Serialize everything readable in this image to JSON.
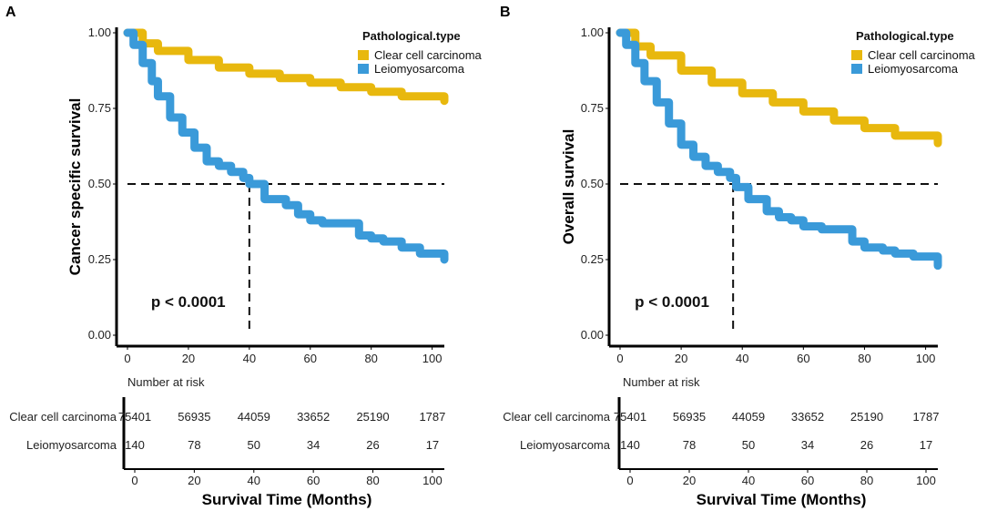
{
  "chart_data": [
    {
      "type": "line",
      "panel_label": "A",
      "ylabel": "Cancer specific survival",
      "xlabel": "Survival Time (Months)",
      "xlim": [
        -5,
        105
      ],
      "ylim": [
        -0.03,
        1.03
      ],
      "x_ticks": [
        0,
        20,
        40,
        60,
        80,
        100
      ],
      "x_tick_labels": [
        "0",
        "20",
        "40",
        "60",
        "80",
        "100"
      ],
      "y_ticks": [
        0.0,
        0.25,
        0.5,
        0.75,
        1.0
      ],
      "y_tick_labels": [
        "0.00",
        "0.25",
        "0.50",
        "0.75",
        "1.00"
      ],
      "legend_title": "Pathological.type",
      "legend_position": "top-right",
      "p_value": "p < 0.0001",
      "median_line": {
        "y": 0.5,
        "x": 40
      },
      "series": [
        {
          "name": "Clear cell carcinoma",
          "color": "#E8B80E",
          "x": [
            0,
            5,
            10,
            20,
            30,
            40,
            50,
            60,
            70,
            80,
            90,
            104
          ],
          "y": [
            1.0,
            0.965,
            0.94,
            0.91,
            0.885,
            0.865,
            0.85,
            0.835,
            0.82,
            0.805,
            0.79,
            0.775
          ]
        },
        {
          "name": "Leiomyosarcoma",
          "color": "#3A9AD9",
          "x": [
            0,
            2,
            5,
            8,
            10,
            14,
            18,
            22,
            26,
            30,
            34,
            38,
            40,
            45,
            52,
            56,
            60,
            64,
            70,
            74,
            76,
            80,
            84,
            90,
            96,
            100,
            104
          ],
          "y": [
            1.0,
            0.96,
            0.9,
            0.84,
            0.79,
            0.72,
            0.67,
            0.62,
            0.575,
            0.56,
            0.54,
            0.52,
            0.5,
            0.45,
            0.43,
            0.4,
            0.38,
            0.37,
            0.37,
            0.37,
            0.33,
            0.32,
            0.31,
            0.29,
            0.27,
            0.27,
            0.25
          ]
        }
      ],
      "risk_table": {
        "title": "Number at risk",
        "times": [
          "0",
          "20",
          "40",
          "60",
          "80",
          "100"
        ],
        "rows": [
          {
            "group": "Clear cell carcinoma",
            "values": [
              "75401",
              "56935",
              "44059",
              "33652",
              "25190",
              "1787"
            ]
          },
          {
            "group": "Leiomyosarcoma",
            "values": [
              "140",
              "78",
              "50",
              "34",
              "26",
              "17"
            ]
          }
        ]
      }
    },
    {
      "type": "line",
      "panel_label": "B",
      "ylabel": "Overall survival",
      "xlabel": "Survival Time (Months)",
      "xlim": [
        -5,
        105
      ],
      "ylim": [
        -0.03,
        1.03
      ],
      "x_ticks": [
        0,
        20,
        40,
        60,
        80,
        100
      ],
      "x_tick_labels": [
        "0",
        "20",
        "40",
        "60",
        "80",
        "100"
      ],
      "y_ticks": [
        0.0,
        0.25,
        0.5,
        0.75,
        1.0
      ],
      "y_tick_labels": [
        "0.00",
        "0.25",
        "0.50",
        "0.75",
        "1.00"
      ],
      "legend_title": "Pathological.type",
      "legend_position": "top-right",
      "p_value": "p < 0.0001",
      "median_line": {
        "y": 0.5,
        "x": 37
      },
      "series": [
        {
          "name": "Clear cell carcinoma",
          "color": "#E8B80E",
          "x": [
            0,
            5,
            10,
            20,
            30,
            40,
            50,
            60,
            70,
            80,
            90,
            104
          ],
          "y": [
            1.0,
            0.955,
            0.925,
            0.875,
            0.835,
            0.8,
            0.77,
            0.74,
            0.71,
            0.685,
            0.66,
            0.635
          ]
        },
        {
          "name": "Leiomyosarcoma",
          "color": "#3A9AD9",
          "x": [
            0,
            2,
            5,
            8,
            12,
            16,
            20,
            24,
            28,
            32,
            36,
            38,
            42,
            48,
            52,
            56,
            60,
            66,
            70,
            74,
            76,
            80,
            86,
            90,
            96,
            100,
            104
          ],
          "y": [
            1.0,
            0.96,
            0.9,
            0.84,
            0.77,
            0.7,
            0.63,
            0.59,
            0.56,
            0.54,
            0.52,
            0.49,
            0.45,
            0.41,
            0.39,
            0.38,
            0.36,
            0.35,
            0.35,
            0.35,
            0.31,
            0.29,
            0.28,
            0.27,
            0.26,
            0.26,
            0.23
          ]
        }
      ],
      "risk_table": {
        "title": "Number at risk",
        "times": [
          "0",
          "20",
          "40",
          "60",
          "80",
          "100"
        ],
        "rows": [
          {
            "group": "Clear cell carcinoma",
            "values": [
              "75401",
              "56935",
              "44059",
              "33652",
              "25190",
              "1787"
            ]
          },
          {
            "group": "Leiomyosarcoma",
            "values": [
              "140",
              "78",
              "50",
              "34",
              "26",
              "17"
            ]
          }
        ]
      }
    }
  ]
}
